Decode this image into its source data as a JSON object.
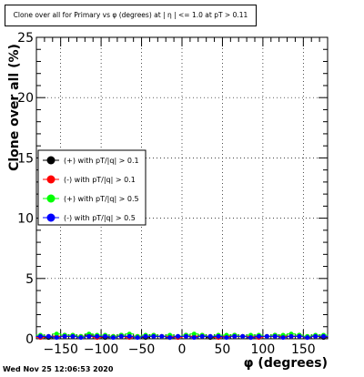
{
  "title": "Clone  over all for Primary vs φ (degrees) at | η | <= 1.0 at pT > 0.11",
  "timestamp": "Wed Nov 25 12:06:53 2020",
  "chart_data": {
    "type": "scatter",
    "xlabel": "φ (degrees)",
    "ylabel": "Clone  over all (%)",
    "xlim": [
      -180,
      180
    ],
    "ylim": [
      0,
      25
    ],
    "x_ticks": [
      -150,
      -100,
      -50,
      0,
      50,
      100,
      150
    ],
    "x_tick_labels": [
      "−150",
      "−100",
      "−50",
      "0",
      "50",
      "100",
      "150"
    ],
    "y_ticks": [
      0,
      5,
      10,
      15,
      20,
      25
    ],
    "y_tick_labels": [
      "0",
      "5",
      "10",
      "15",
      "20",
      "25"
    ],
    "grid": true,
    "legend_position": "left-middle",
    "series": [
      {
        "name": "(+) with pT/|q| > 0.1",
        "color": "#000000",
        "x": [
          -175,
          -165,
          -155,
          -145,
          -135,
          -125,
          -115,
          -105,
          -95,
          -85,
          -75,
          -65,
          -55,
          -45,
          -35,
          -25,
          -15,
          -5,
          5,
          15,
          25,
          35,
          45,
          55,
          65,
          75,
          85,
          95,
          105,
          115,
          125,
          135,
          145,
          155,
          165,
          175
        ],
        "y": [
          0.2,
          0.1,
          0.2,
          0.3,
          0.2,
          0.2,
          0.3,
          0.2,
          0.1,
          0.2,
          0.3,
          0.2,
          0.2,
          0.1,
          0.2,
          0.2,
          0.1,
          0.2,
          0.3,
          0.2,
          0.2,
          0.1,
          0.2,
          0.2,
          0.3,
          0.2,
          0.1,
          0.2,
          0.2,
          0.3,
          0.2,
          0.2,
          0.3,
          0.2,
          0.2,
          0.1
        ]
      },
      {
        "name": "(-) with pT/|q| > 0.1",
        "color": "#ff0000",
        "x": [
          -175,
          -165,
          -155,
          -145,
          -135,
          -125,
          -115,
          -105,
          -95,
          -85,
          -75,
          -65,
          -55,
          -45,
          -35,
          -25,
          -15,
          -5,
          5,
          15,
          25,
          35,
          45,
          55,
          65,
          75,
          85,
          95,
          105,
          115,
          125,
          135,
          145,
          155,
          165,
          175
        ],
        "y": [
          0.1,
          0.2,
          0.2,
          0.2,
          0.3,
          0.2,
          0.2,
          0.1,
          0.2,
          0.2,
          0.2,
          0.1,
          0.2,
          0.2,
          0.3,
          0.2,
          0.2,
          0.1,
          0.2,
          0.2,
          0.3,
          0.2,
          0.1,
          0.2,
          0.2,
          0.2,
          0.2,
          0.1,
          0.2,
          0.2,
          0.2,
          0.2,
          0.2,
          0.1,
          0.2,
          0.2
        ]
      },
      {
        "name": "(+) with pT/|q| > 0.5",
        "color": "#00ff00",
        "x": [
          -175,
          -165,
          -155,
          -145,
          -135,
          -125,
          -115,
          -105,
          -95,
          -85,
          -75,
          -65,
          -55,
          -45,
          -35,
          -25,
          -15,
          -5,
          5,
          15,
          25,
          35,
          45,
          55,
          65,
          75,
          85,
          95,
          105,
          115,
          125,
          135,
          145,
          155,
          165,
          175
        ],
        "y": [
          0.3,
          0.2,
          0.4,
          0.3,
          0.3,
          0.2,
          0.4,
          0.3,
          0.3,
          0.2,
          0.3,
          0.4,
          0.2,
          0.3,
          0.3,
          0.2,
          0.3,
          0.2,
          0.3,
          0.4,
          0.3,
          0.2,
          0.3,
          0.3,
          0.3,
          0.2,
          0.3,
          0.3,
          0.2,
          0.3,
          0.3,
          0.4,
          0.3,
          0.2,
          0.3,
          0.3
        ]
      },
      {
        "name": "(-) with pT/|q| > 0.5",
        "color": "#0000ff",
        "x": [
          -175,
          -165,
          -155,
          -145,
          -135,
          -125,
          -115,
          -105,
          -95,
          -85,
          -75,
          -65,
          -55,
          -45,
          -35,
          -25,
          -15,
          -5,
          5,
          15,
          25,
          35,
          45,
          55,
          65,
          75,
          85,
          95,
          105,
          115,
          125,
          135,
          145,
          155,
          165,
          175
        ],
        "y": [
          0.2,
          0.2,
          0.1,
          0.2,
          0.2,
          0.1,
          0.2,
          0.2,
          0.2,
          0.1,
          0.2,
          0.2,
          0.1,
          0.2,
          0.2,
          0.2,
          0.1,
          0.2,
          0.2,
          0.1,
          0.2,
          0.2,
          0.2,
          0.1,
          0.2,
          0.2,
          0.1,
          0.2,
          0.2,
          0.2,
          0.1,
          0.2,
          0.2,
          0.1,
          0.2,
          0.2
        ]
      }
    ]
  }
}
